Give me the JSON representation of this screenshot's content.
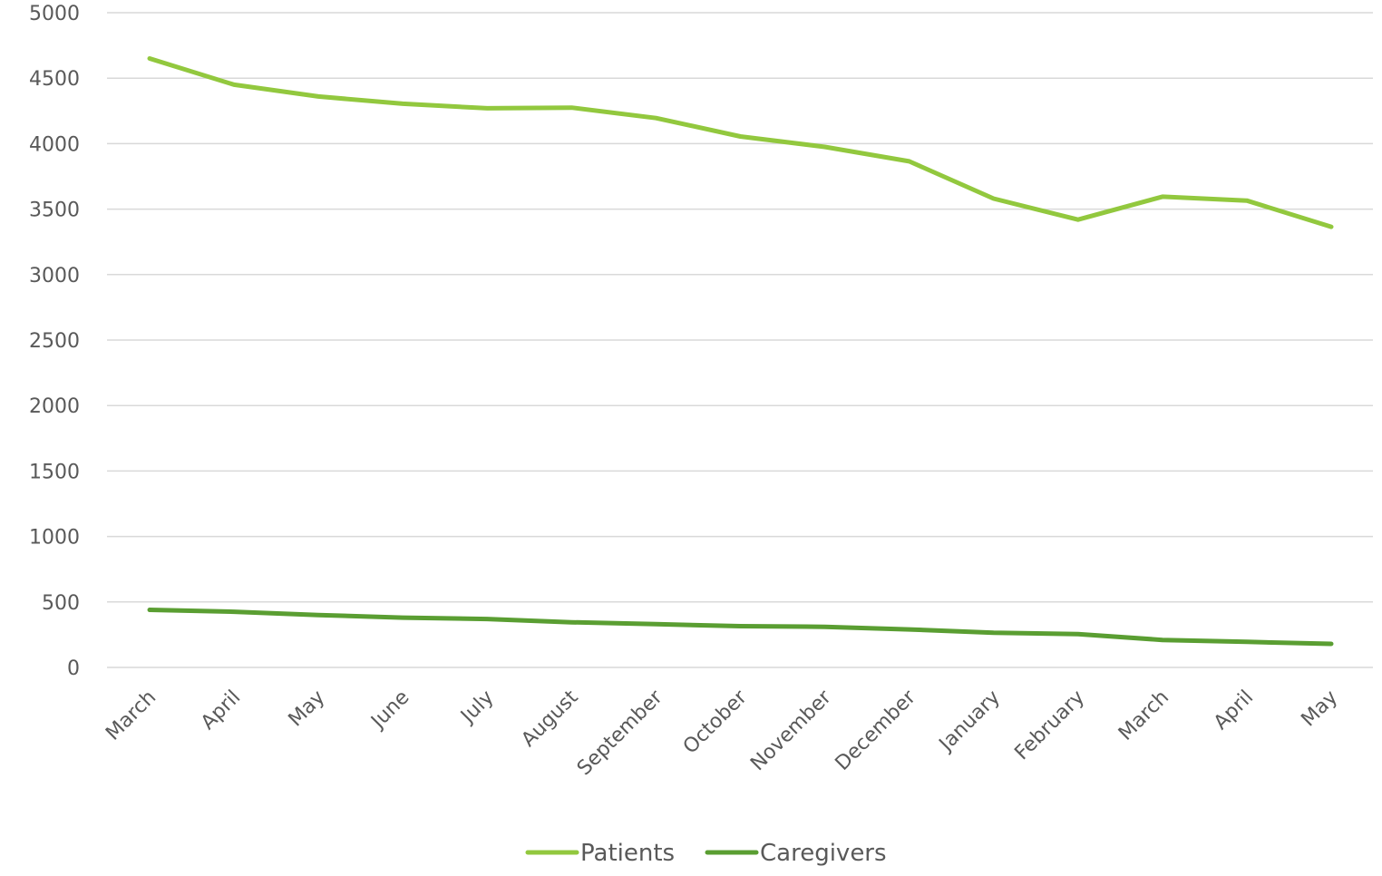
{
  "chart_data": {
    "type": "line",
    "title": "",
    "xlabel": "",
    "ylabel": "",
    "categories": [
      "March",
      "April",
      "May",
      "June",
      "July",
      "August",
      "September",
      "October",
      "November",
      "December",
      "January",
      "February",
      "March",
      "April",
      "May"
    ],
    "ylim": [
      0,
      5000
    ],
    "yticks": [
      0,
      500,
      1000,
      1500,
      2000,
      2500,
      3000,
      3500,
      4000,
      4500,
      5000
    ],
    "grid": true,
    "legend_position": "bottom",
    "series": [
      {
        "name": "Patients",
        "color": "#92c83e",
        "values": [
          4650,
          4450,
          4360,
          4305,
          4270,
          4275,
          4195,
          4055,
          3975,
          3865,
          3580,
          3420,
          3595,
          3565,
          3365
        ]
      },
      {
        "name": "Caregivers",
        "color": "#5a9e32",
        "values": [
          440,
          425,
          400,
          380,
          370,
          345,
          330,
          315,
          310,
          290,
          265,
          255,
          210,
          195,
          180
        ]
      }
    ]
  }
}
